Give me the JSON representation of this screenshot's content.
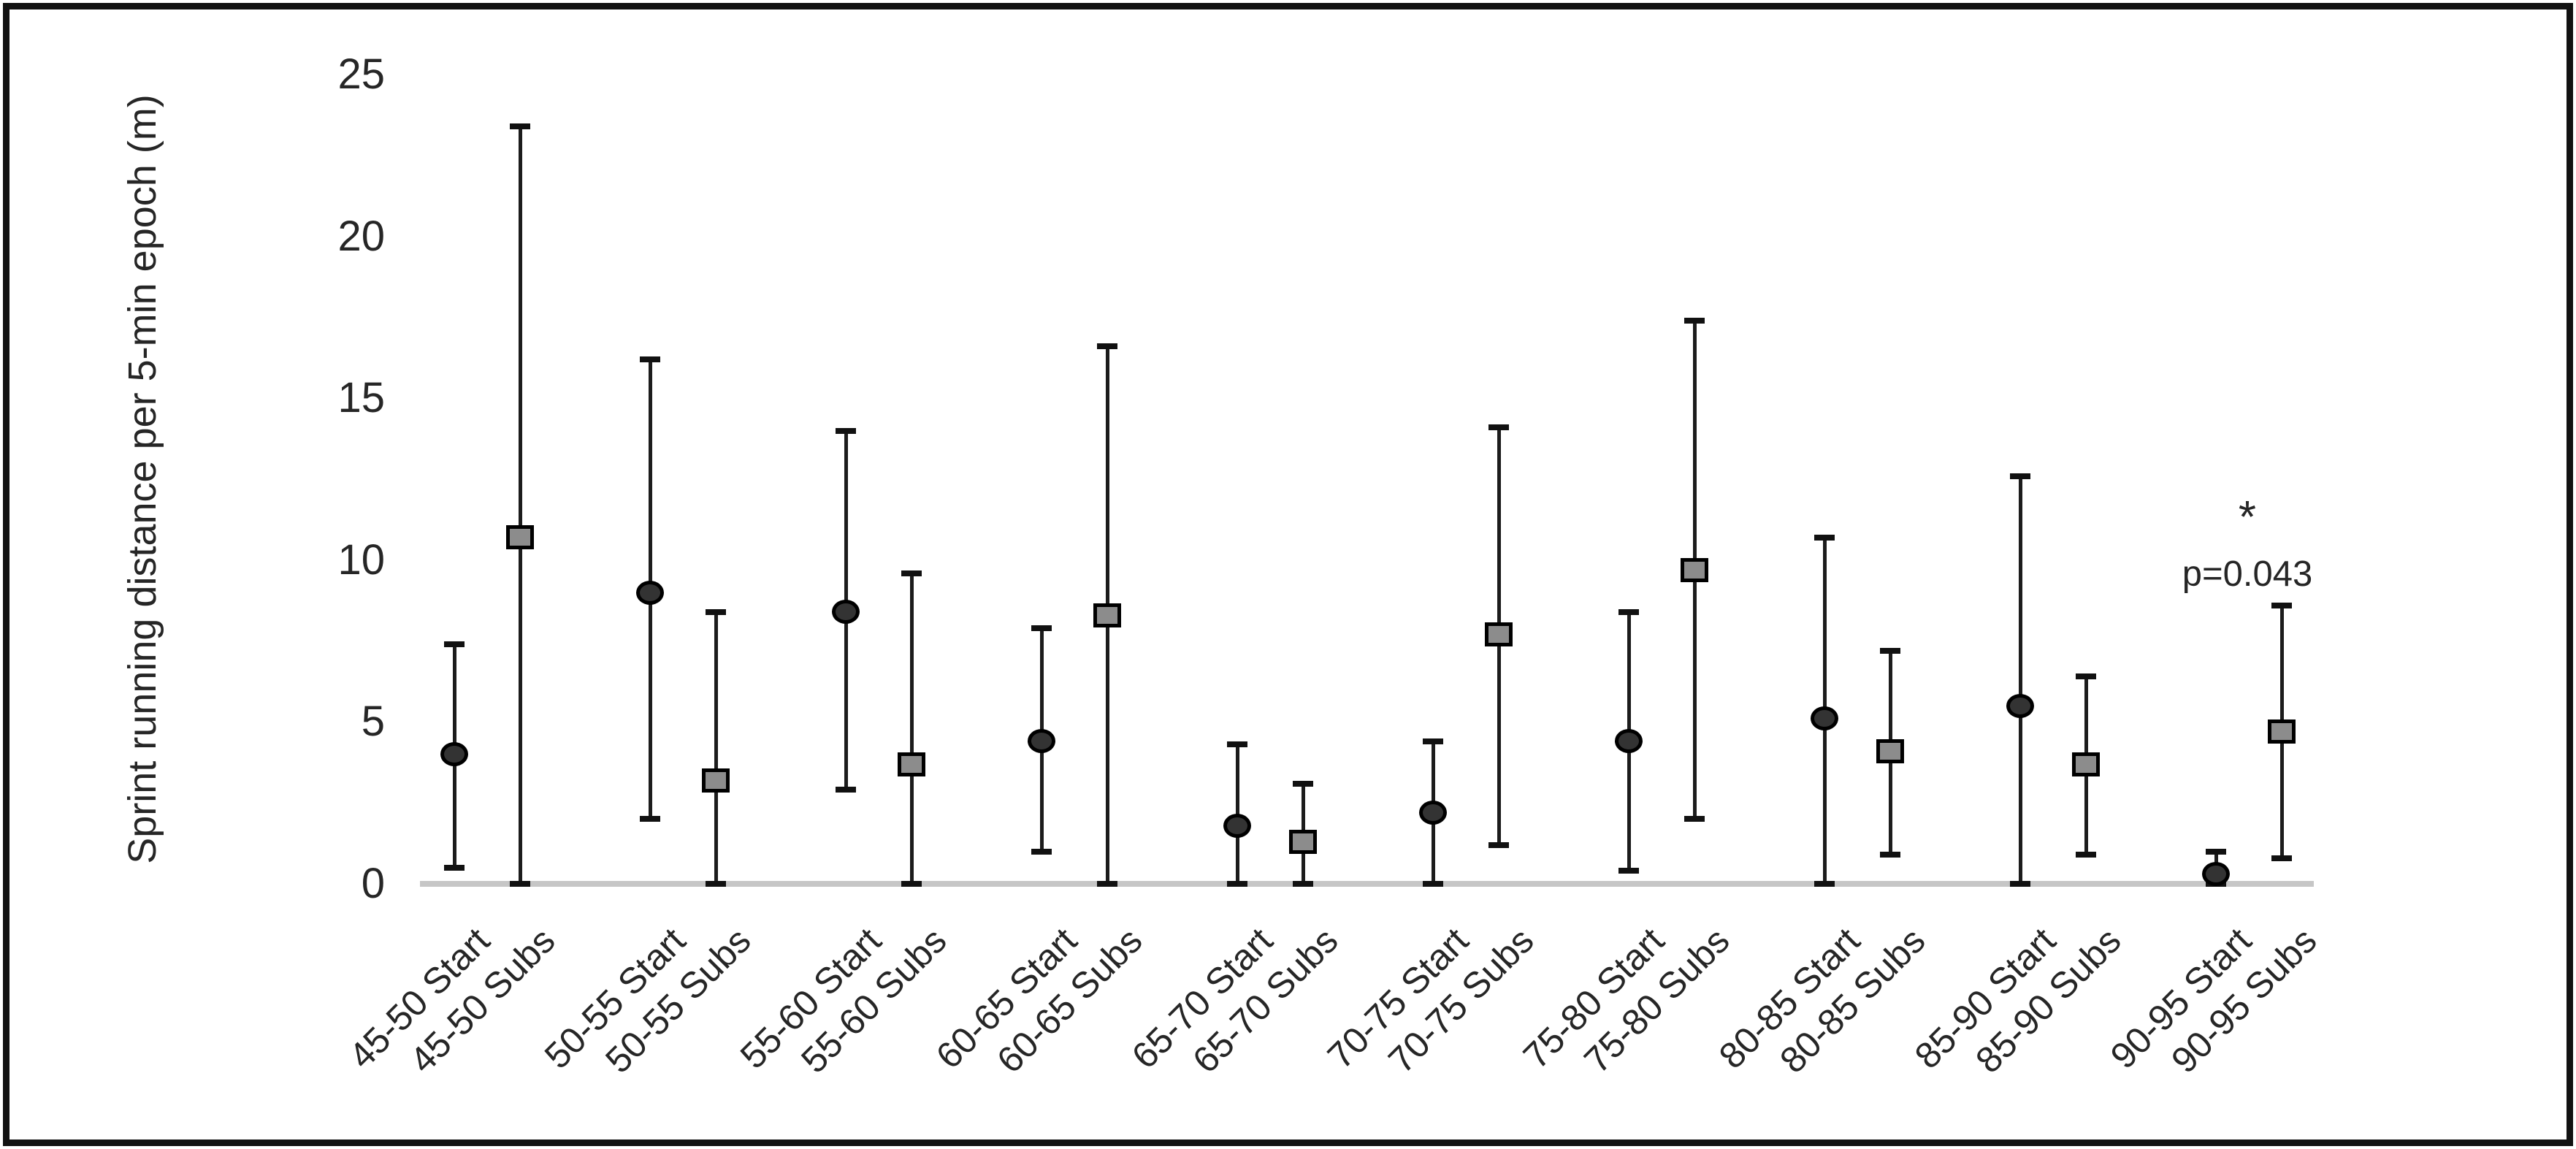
{
  "figure": {
    "background": "#ffffff",
    "border_color": "#121212",
    "baseline_color": "#c6c6c6",
    "text_color": "#262626"
  },
  "chart_data": {
    "type": "scatter",
    "subtype": "means-with-min-max-error-bars",
    "title": "",
    "xlabel": "",
    "ylabel": "Sprint running distance per 5-min epoch (m)",
    "ylim": [
      0,
      25
    ],
    "yticks": [
      0,
      5,
      10,
      15,
      20,
      25
    ],
    "grid": false,
    "legend_position": "none",
    "marker_styles": {
      "Start": {
        "shape": "circle",
        "fill": "#333333",
        "stroke": "#000000"
      },
      "Subs": {
        "shape": "square",
        "fill": "#8c8c8c",
        "stroke": "#000000"
      }
    },
    "categories": [
      "45-50 Start",
      "45-50 Subs",
      "50-55 Start",
      "50-55 Subs",
      "55-60 Start",
      "55-60 Subs",
      "60-65 Start",
      "60-65 Subs",
      "65-70 Start",
      "65-70 Subs",
      "70-75 Start",
      "70-75 Subs",
      "75-80 Start",
      "75-80 Subs",
      "80-85 Start",
      "80-85 Subs",
      "85-90 Start",
      "85-90 Subs",
      "90-95 Start",
      "90-95 Subs"
    ],
    "points": [
      {
        "label": "45-50 Start",
        "epoch": "45-50",
        "group": "Start",
        "mean": 4.0,
        "lower": 0.5,
        "upper": 7.4
      },
      {
        "label": "45-50 Subs",
        "epoch": "45-50",
        "group": "Subs",
        "mean": 10.7,
        "lower": 0,
        "upper": 23.4
      },
      {
        "label": "50-55 Start",
        "epoch": "50-55",
        "group": "Start",
        "mean": 9.0,
        "lower": 2.0,
        "upper": 16.2
      },
      {
        "label": "50-55 Subs",
        "epoch": "50-55",
        "group": "Subs",
        "mean": 3.2,
        "lower": 0,
        "upper": 8.4
      },
      {
        "label": "55-60 Start",
        "epoch": "55-60",
        "group": "Start",
        "mean": 8.4,
        "lower": 2.9,
        "upper": 14.0
      },
      {
        "label": "55-60 Subs",
        "epoch": "55-60",
        "group": "Subs",
        "mean": 3.7,
        "lower": 0,
        "upper": 9.6
      },
      {
        "label": "60-65 Start",
        "epoch": "60-65",
        "group": "Start",
        "mean": 4.4,
        "lower": 1.0,
        "upper": 7.9
      },
      {
        "label": "60-65 Subs",
        "epoch": "60-65",
        "group": "Subs",
        "mean": 8.3,
        "lower": 0,
        "upper": 16.6
      },
      {
        "label": "65-70 Start",
        "epoch": "65-70",
        "group": "Start",
        "mean": 1.8,
        "lower": 0,
        "upper": 4.3
      },
      {
        "label": "65-70 Subs",
        "epoch": "65-70",
        "group": "Subs",
        "mean": 1.3,
        "lower": 0,
        "upper": 3.1
      },
      {
        "label": "70-75 Start",
        "epoch": "70-75",
        "group": "Start",
        "mean": 2.2,
        "lower": 0,
        "upper": 4.4
      },
      {
        "label": "70-75 Subs",
        "epoch": "70-75",
        "group": "Subs",
        "mean": 7.7,
        "lower": 1.2,
        "upper": 14.1
      },
      {
        "label": "75-80 Start",
        "epoch": "75-80",
        "group": "Start",
        "mean": 4.4,
        "lower": 0.4,
        "upper": 8.4
      },
      {
        "label": "75-80 Subs",
        "epoch": "75-80",
        "group": "Subs",
        "mean": 9.7,
        "lower": 2.0,
        "upper": 17.4
      },
      {
        "label": "80-85 Start",
        "epoch": "80-85",
        "group": "Start",
        "mean": 5.1,
        "lower": 0,
        "upper": 10.7
      },
      {
        "label": "80-85 Subs",
        "epoch": "80-85",
        "group": "Subs",
        "mean": 4.1,
        "lower": 0.9,
        "upper": 7.2
      },
      {
        "label": "85-90 Start",
        "epoch": "85-90",
        "group": "Start",
        "mean": 5.5,
        "lower": 0,
        "upper": 12.6
      },
      {
        "label": "85-90 Subs",
        "epoch": "85-90",
        "group": "Subs",
        "mean": 3.7,
        "lower": 0.9,
        "upper": 6.4
      },
      {
        "label": "90-95 Start",
        "epoch": "90-95",
        "group": "Start",
        "mean": 0.3,
        "lower": 0,
        "upper": 1.0
      },
      {
        "label": "90-95 Subs",
        "epoch": "90-95",
        "group": "Subs",
        "mean": 4.7,
        "lower": 0.8,
        "upper": 8.6
      }
    ],
    "annotation": {
      "star": "*",
      "text": "p=0.043",
      "applies_to": "90-95 Subs"
    }
  }
}
